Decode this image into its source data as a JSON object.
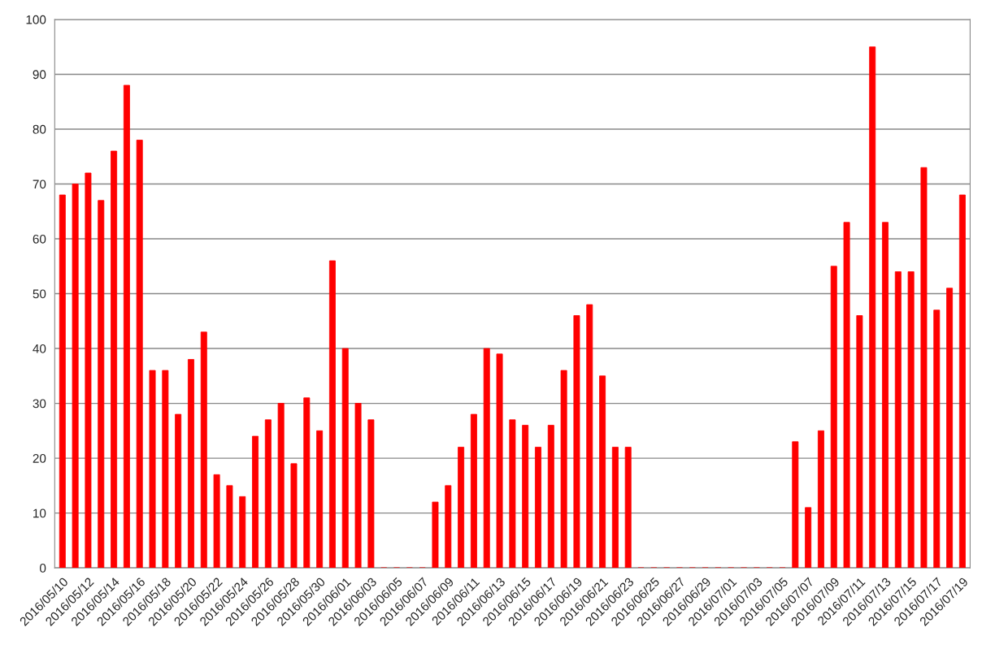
{
  "chart_data": {
    "type": "bar",
    "categories": [
      "2016/05/10",
      null,
      "2016/05/12",
      null,
      "2016/05/14",
      null,
      "2016/05/16",
      null,
      "2016/05/18",
      null,
      "2016/05/20",
      null,
      "2016/05/22",
      null,
      "2016/05/24",
      null,
      "2016/05/26",
      null,
      "2016/05/28",
      null,
      "2016/05/30",
      null,
      "2016/06/01",
      null,
      "2016/06/03",
      null,
      "2016/06/05",
      null,
      "2016/06/07",
      null,
      "2016/06/09",
      null,
      "2016/06/11",
      null,
      "2016/06/13",
      null,
      "2016/06/15",
      null,
      "2016/06/17",
      null,
      "2016/06/19",
      null,
      "2016/06/21",
      null,
      "2016/06/23",
      null,
      "2016/06/25",
      null,
      "2016/06/27",
      null,
      "2016/06/29",
      null,
      "2016/07/01",
      null,
      "2016/07/03",
      null,
      "2016/07/05",
      null,
      "2016/07/07",
      null,
      "2016/07/09",
      null,
      "2016/07/11",
      null,
      "2016/07/13",
      null,
      "2016/07/15",
      null,
      "2016/07/17",
      null,
      "2016/07/19"
    ],
    "values": [
      68,
      70,
      72,
      67,
      76,
      88,
      78,
      36,
      36,
      28,
      38,
      43,
      17,
      15,
      13,
      24,
      27,
      30,
      19,
      31,
      25,
      56,
      40,
      30,
      27,
      0,
      0,
      0,
      0,
      12,
      15,
      22,
      28,
      40,
      39,
      27,
      26,
      22,
      26,
      36,
      46,
      48,
      35,
      22,
      22,
      0,
      0,
      0,
      0,
      0,
      0,
      0,
      0,
      0,
      0,
      0,
      0,
      23,
      11,
      25,
      55,
      63,
      46,
      95,
      63,
      54,
      54,
      73,
      47,
      51,
      68
    ],
    "color": "#ff0000",
    "ylim": [
      0,
      100
    ],
    "yticks": [
      0,
      10,
      20,
      30,
      40,
      50,
      60,
      70,
      80,
      90,
      100
    ],
    "grid": "y"
  }
}
